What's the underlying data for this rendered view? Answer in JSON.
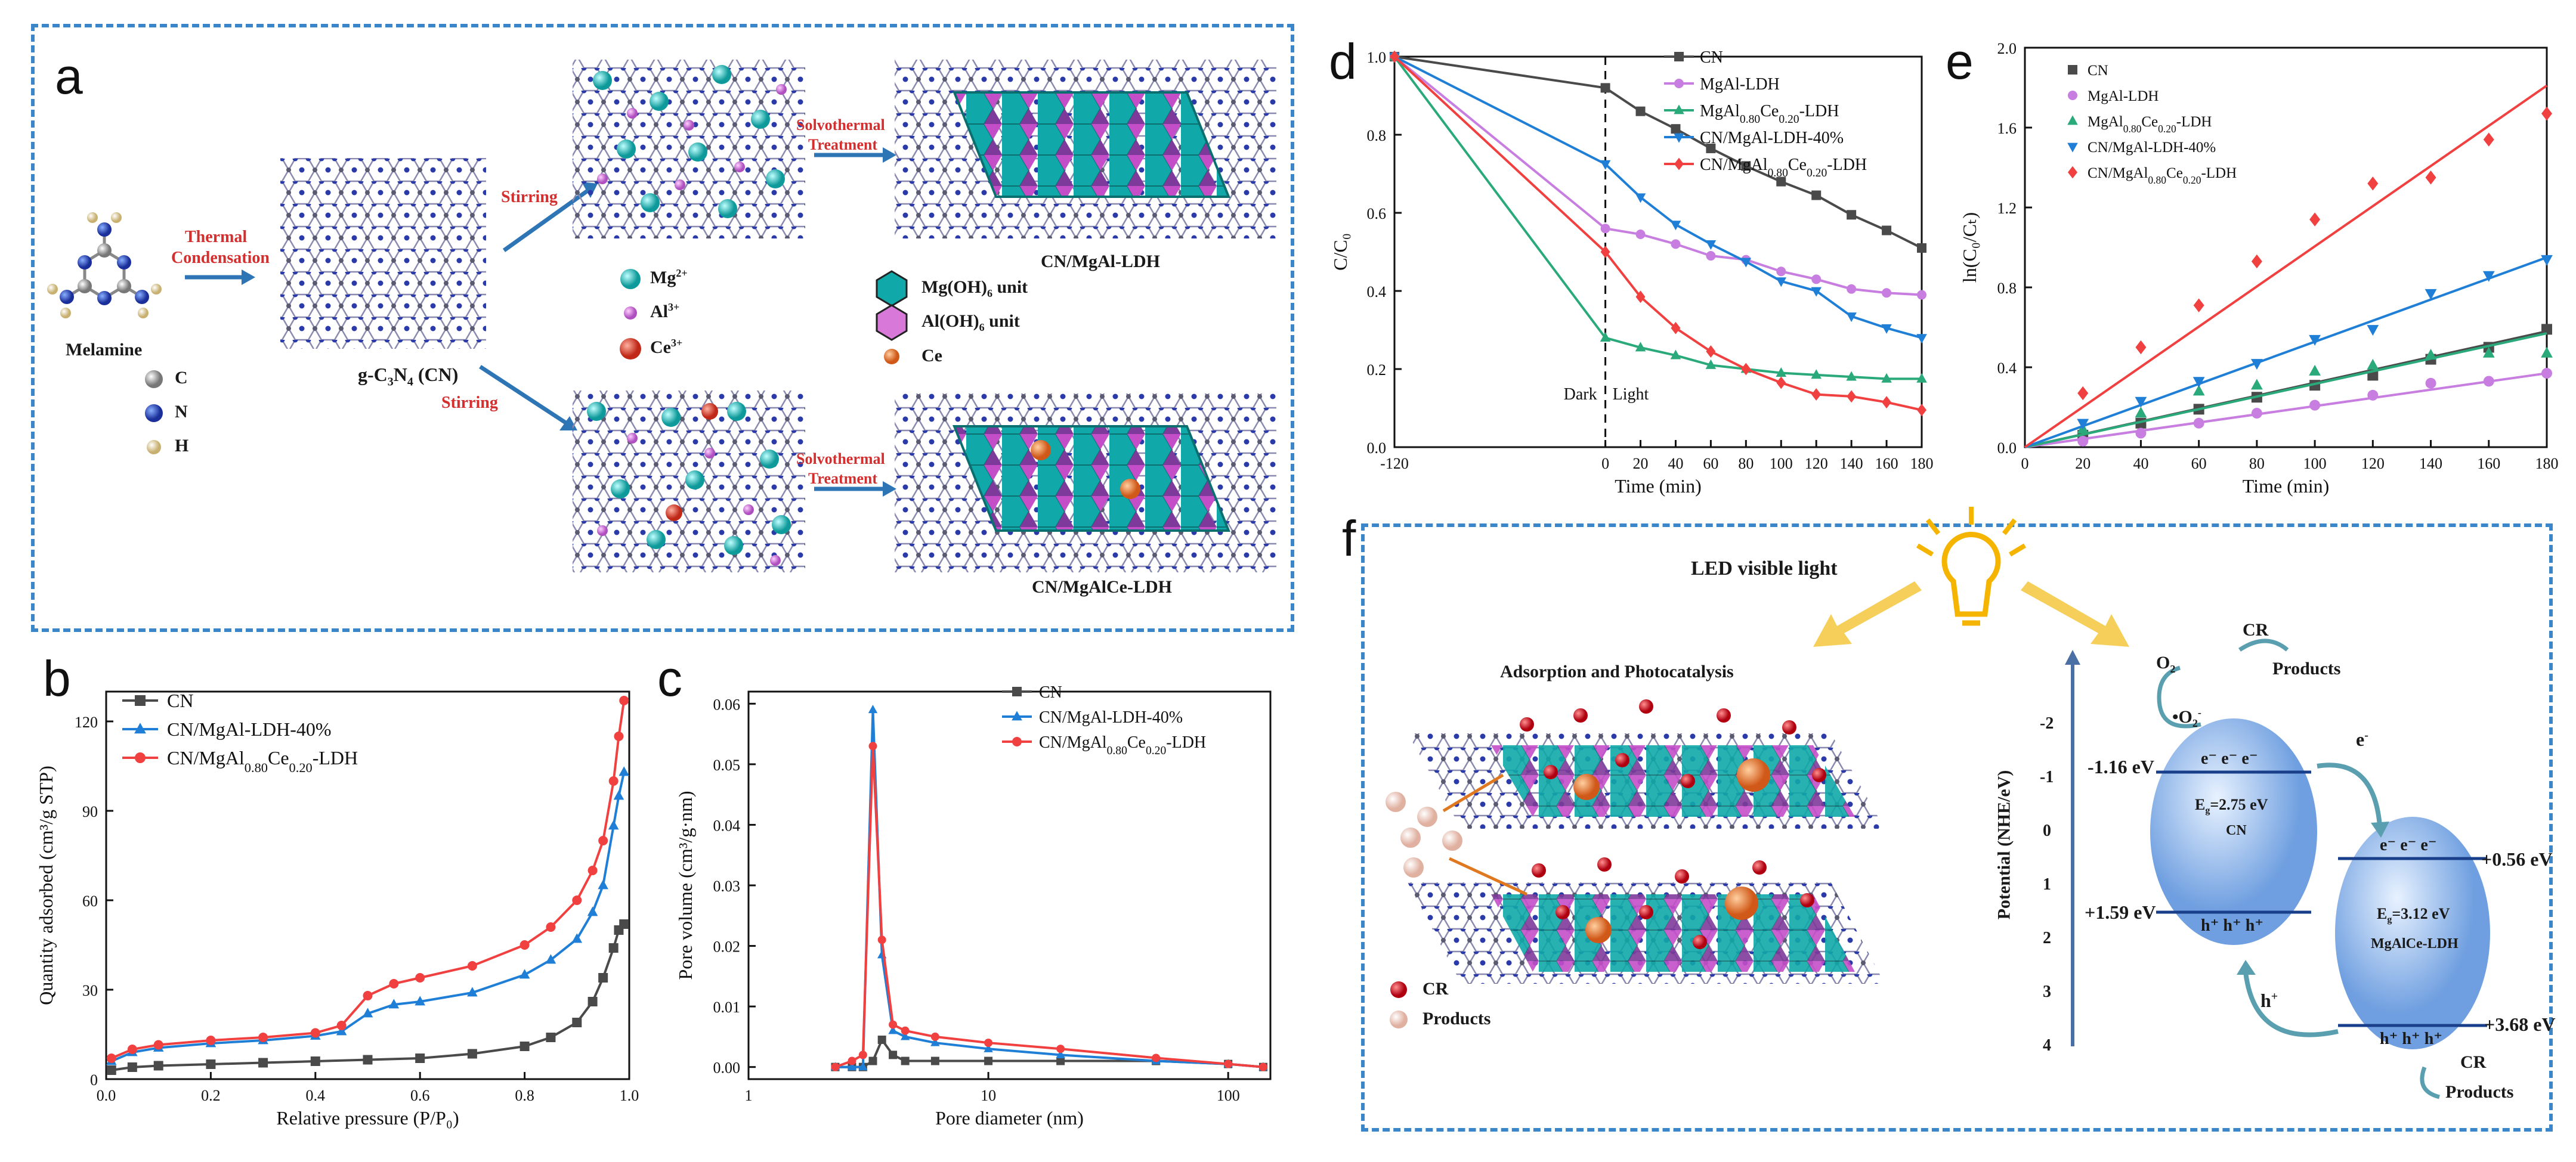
{
  "panels": {
    "a": "a",
    "b": "b",
    "c": "c",
    "d": "d",
    "e": "e",
    "f": "f"
  },
  "a": {
    "melamine": "Melamine",
    "legend_atoms": [
      "C",
      "N",
      "H"
    ],
    "thermal": [
      "Thermal",
      "Condensation"
    ],
    "gcn_label": "g-C",
    "gcn_sub": "3",
    "gcn_n": "N",
    "gcn_sub2": "4",
    "gcn_suffix": " (CN)",
    "stirring": "Stirring",
    "ions": [
      {
        "base": "Mg",
        "sup": "2+",
        "color": "#19b8b8"
      },
      {
        "base": "Al",
        "sup": "3+",
        "color": "#d878d8"
      },
      {
        "base": "Ce",
        "sup": "3+",
        "color": "#e0483a"
      }
    ],
    "solvo": [
      "Solvothermal",
      "Treatment"
    ],
    "units": [
      {
        "pre": "Mg(OH)",
        "sub": "6",
        "post": " unit",
        "color": "#19b8b8"
      },
      {
        "pre": "Al(OH)",
        "sub": "6",
        "post": " unit",
        "color": "#d878d8"
      },
      {
        "pre": "Ce",
        "sub": "",
        "post": "",
        "color": "#f08040"
      }
    ],
    "product_top": "CN/MgAl-LDH",
    "product_bottom": "CN/MgAlCe-LDH"
  },
  "colors": {
    "CN": "#4a4a4a",
    "MgAl": "#c77ee0",
    "MgAlCe": "#2aaa7a",
    "CNMgAl": "#1f7fd6",
    "CNMgAlCe": "#f04040",
    "frame": "#3a86c8"
  },
  "chart_data": [
    {
      "id": "b",
      "type": "line",
      "xlabel": "Relative pressure (P/P₀)",
      "ylabel": "Quantity adsorbed (cm³/g STP)",
      "xlim": [
        0,
        1.0
      ],
      "ylim": [
        0,
        130
      ],
      "xticks": [
        "0.0",
        "0.2",
        "0.4",
        "0.6",
        "0.8",
        "1.0"
      ],
      "yticks": [
        "0",
        "30",
        "60",
        "90",
        "120"
      ],
      "legend": [
        "CN",
        "CN/MgAl-LDH-40%",
        "CN/MgAl0.80Ce0.20-LDH"
      ],
      "series": [
        {
          "name": "CN",
          "x": [
            0.01,
            0.05,
            0.1,
            0.2,
            0.3,
            0.4,
            0.5,
            0.6,
            0.7,
            0.8,
            0.85,
            0.9,
            0.93,
            0.95,
            0.97,
            0.98,
            0.99
          ],
          "values": [
            3,
            4,
            4.5,
            5,
            5.5,
            6,
            6.5,
            7,
            8.5,
            11,
            14,
            19,
            26,
            34,
            44,
            50,
            52
          ]
        },
        {
          "name": "CN/MgAl-LDH-40%",
          "x": [
            0.01,
            0.05,
            0.1,
            0.2,
            0.3,
            0.4,
            0.45,
            0.5,
            0.55,
            0.6,
            0.7,
            0.8,
            0.85,
            0.9,
            0.93,
            0.95,
            0.97,
            0.98,
            0.99
          ],
          "values": [
            6,
            9,
            10.5,
            12,
            13,
            14.5,
            16,
            22,
            25,
            26,
            29,
            35,
            40,
            47,
            56,
            65,
            85,
            95,
            103
          ]
        },
        {
          "name": "CN/MgAl0.80Ce0.20-LDH",
          "x": [
            0.01,
            0.05,
            0.1,
            0.2,
            0.3,
            0.4,
            0.45,
            0.5,
            0.55,
            0.6,
            0.7,
            0.8,
            0.85,
            0.9,
            0.93,
            0.95,
            0.97,
            0.98,
            0.99
          ],
          "values": [
            7,
            10,
            11.5,
            13,
            14,
            15.5,
            18,
            28,
            32,
            34,
            38,
            45,
            51,
            60,
            70,
            80,
            100,
            115,
            127
          ]
        }
      ]
    },
    {
      "id": "c",
      "type": "line",
      "xlabel": "Pore diameter (nm)",
      "ylabel": "Pore volume (cm³/g·nm)",
      "xscale": "log",
      "xlim": [
        1,
        150
      ],
      "ylim": [
        -0.002,
        0.062
      ],
      "xticks": [
        "1",
        "10",
        "100"
      ],
      "yticks": [
        "0.00",
        "0.01",
        "0.02",
        "0.03",
        "0.04",
        "0.05",
        "0.06"
      ],
      "legend": [
        "CN",
        "CN/MgAl-LDH-40%",
        "CN/MgAl0.80Ce0.20-LDH"
      ],
      "series": [
        {
          "name": "CN",
          "x": [
            2.3,
            2.7,
            3.0,
            3.3,
            3.6,
            4.0,
            4.5,
            6,
            10,
            20,
            50,
            100,
            140
          ],
          "values": [
            0.0,
            0.0,
            0.0,
            0.001,
            0.0045,
            0.002,
            0.001,
            0.001,
            0.001,
            0.001,
            0.001,
            0.0005,
            0.0
          ]
        },
        {
          "name": "CN/MgAl-LDH-40%",
          "x": [
            2.3,
            2.7,
            3.0,
            3.3,
            3.6,
            4.0,
            4.5,
            6,
            10,
            20,
            50,
            100,
            140
          ],
          "values": [
            0.0,
            0.0,
            0.0,
            0.059,
            0.0185,
            0.006,
            0.005,
            0.004,
            0.003,
            0.002,
            0.001,
            0.0005,
            0.0
          ]
        },
        {
          "name": "CN/MgAl0.80Ce0.20-LDH",
          "x": [
            2.3,
            2.7,
            3.0,
            3.3,
            3.6,
            4.0,
            4.5,
            6,
            10,
            20,
            50,
            100,
            140
          ],
          "values": [
            0.0,
            0.001,
            0.002,
            0.053,
            0.021,
            0.007,
            0.006,
            0.005,
            0.004,
            0.003,
            0.0015,
            0.0005,
            0.0
          ]
        }
      ]
    },
    {
      "id": "d",
      "type": "line",
      "xlabel": "Time (min)",
      "ylabel": "C/C₀",
      "xlim": [
        -120,
        180
      ],
      "ylim": [
        0,
        1.0
      ],
      "xticks": [
        "-120",
        "0",
        "20",
        "40",
        "60",
        "80",
        "100",
        "120",
        "140",
        "160",
        "180"
      ],
      "yticks": [
        "0.0",
        "0.2",
        "0.4",
        "0.6",
        "0.8",
        "1.0"
      ],
      "annotations": [
        "Dark",
        "Light"
      ],
      "legend": [
        "CN",
        "MgAl-LDH",
        "MgAl0.80Ce0.20-LDH",
        "CN/MgAl-LDH-40%",
        "CN/MgAl0.80Ce0.20-LDH"
      ],
      "series": [
        {
          "name": "CN",
          "x": [
            -120,
            0,
            20,
            40,
            60,
            80,
            100,
            120,
            140,
            160,
            180
          ],
          "values": [
            1.0,
            0.92,
            0.86,
            0.815,
            0.765,
            0.72,
            0.68,
            0.645,
            0.595,
            0.555,
            0.51
          ]
        },
        {
          "name": "MgAl-LDH",
          "x": [
            -120,
            0,
            20,
            40,
            60,
            80,
            100,
            120,
            140,
            160,
            180
          ],
          "values": [
            1.0,
            0.56,
            0.545,
            0.52,
            0.49,
            0.48,
            0.45,
            0.43,
            0.405,
            0.395,
            0.39
          ]
        },
        {
          "name": "MgAl0.80Ce0.20-LDH",
          "x": [
            -120,
            0,
            20,
            40,
            60,
            80,
            100,
            120,
            140,
            160,
            180
          ],
          "values": [
            1.0,
            0.28,
            0.255,
            0.235,
            0.21,
            0.2,
            0.19,
            0.185,
            0.18,
            0.175,
            0.175
          ]
        },
        {
          "name": "CN/MgAl-LDH-40%",
          "x": [
            -120,
            0,
            20,
            40,
            60,
            80,
            100,
            120,
            140,
            160,
            180
          ],
          "values": [
            1.0,
            0.725,
            0.64,
            0.57,
            0.52,
            0.475,
            0.425,
            0.4,
            0.335,
            0.305,
            0.28
          ]
        },
        {
          "name": "CN/MgAl0.80Ce0.20-LDH",
          "x": [
            -120,
            0,
            20,
            40,
            60,
            80,
            100,
            120,
            140,
            160,
            180
          ],
          "values": [
            1.0,
            0.5,
            0.385,
            0.305,
            0.245,
            0.2,
            0.165,
            0.135,
            0.13,
            0.115,
            0.095
          ]
        }
      ]
    },
    {
      "id": "e",
      "type": "scatter",
      "xlabel": "Time (min)",
      "ylabel": "ln(C₀/Cₜ)",
      "xlim": [
        0,
        180
      ],
      "ylim": [
        0,
        2.0
      ],
      "xticks": [
        "0",
        "20",
        "40",
        "60",
        "80",
        "100",
        "120",
        "140",
        "160",
        "180"
      ],
      "yticks": [
        "0.0",
        "0.4",
        "0.8",
        "1.2",
        "1.6",
        "2.0"
      ],
      "legend": [
        "CN",
        "MgAl-LDH",
        "MgAl0.80Ce0.20-LDH",
        "CN/MgAl-LDH-40%",
        "CN/MgAl0.80Ce0.20-LDH"
      ],
      "series": [
        {
          "name": "CN",
          "x": [
            20,
            40,
            60,
            80,
            100,
            120,
            140,
            160,
            180
          ],
          "values": [
            0.06,
            0.12,
            0.19,
            0.25,
            0.31,
            0.36,
            0.44,
            0.5,
            0.59
          ],
          "fit_end": 0.58
        },
        {
          "name": "MgAl-LDH",
          "x": [
            20,
            40,
            60,
            80,
            100,
            120,
            140,
            160,
            180
          ],
          "values": [
            0.03,
            0.07,
            0.12,
            0.17,
            0.21,
            0.26,
            0.32,
            0.33,
            0.37
          ],
          "fit_end": 0.37
        },
        {
          "name": "MgAl0.80Ce0.20-LDH",
          "x": [
            20,
            40,
            60,
            80,
            100,
            120,
            140,
            160,
            180
          ],
          "values": [
            0.09,
            0.17,
            0.28,
            0.31,
            0.38,
            0.41,
            0.46,
            0.47,
            0.47
          ],
          "fit_end": 0.57
        },
        {
          "name": "CN/MgAl-LDH-40%",
          "x": [
            20,
            40,
            60,
            80,
            100,
            120,
            140,
            160,
            180
          ],
          "values": [
            0.12,
            0.23,
            0.33,
            0.42,
            0.54,
            0.59,
            0.77,
            0.86,
            0.94
          ],
          "fit_end": 0.95
        },
        {
          "name": "CN/MgAl0.80Ce0.20-LDH",
          "x": [
            20,
            40,
            60,
            80,
            100,
            120,
            140,
            160,
            180
          ],
          "values": [
            0.27,
            0.5,
            0.71,
            0.93,
            1.14,
            1.32,
            1.35,
            1.54,
            1.67
          ],
          "fit_end": 1.81
        }
      ]
    }
  ],
  "f": {
    "led": "LED visible light",
    "adsorption": "Adsorption and Photocatalysis",
    "cr": "CR",
    "products": "Products",
    "o2": "O",
    "o2sub": "2",
    "o2rad": "•O",
    "o2radsup": "-",
    "cr_top": "CR",
    "products_top": "Products",
    "cr_bottom": "CR",
    "products_bottom": "Products",
    "axis_label": "Potential (NHE/eV)",
    "axis_ticks": [
      "-2",
      "-1",
      "0",
      "1",
      "2",
      "3",
      "4"
    ],
    "cn_cb": "-1.16 eV",
    "cn_vb": "+1.59 eV",
    "ldh_cb": "+0.56 eV",
    "ldh_vb": "+3.68 eV",
    "electrons": "e⁻ e⁻ e⁻",
    "holes": "h⁺ h⁺ h⁺",
    "cn_eg": "=2.75 eV",
    "cn_name": "CN",
    "ldh_eg": "=3.12 eV",
    "ldh_name": "MgAlCe-LDH",
    "eg": "E",
    "eg_sub": "g",
    "transfer_e": "e",
    "transfer_e_sup": "-",
    "transfer_h": "h",
    "transfer_h_sup": "+"
  }
}
